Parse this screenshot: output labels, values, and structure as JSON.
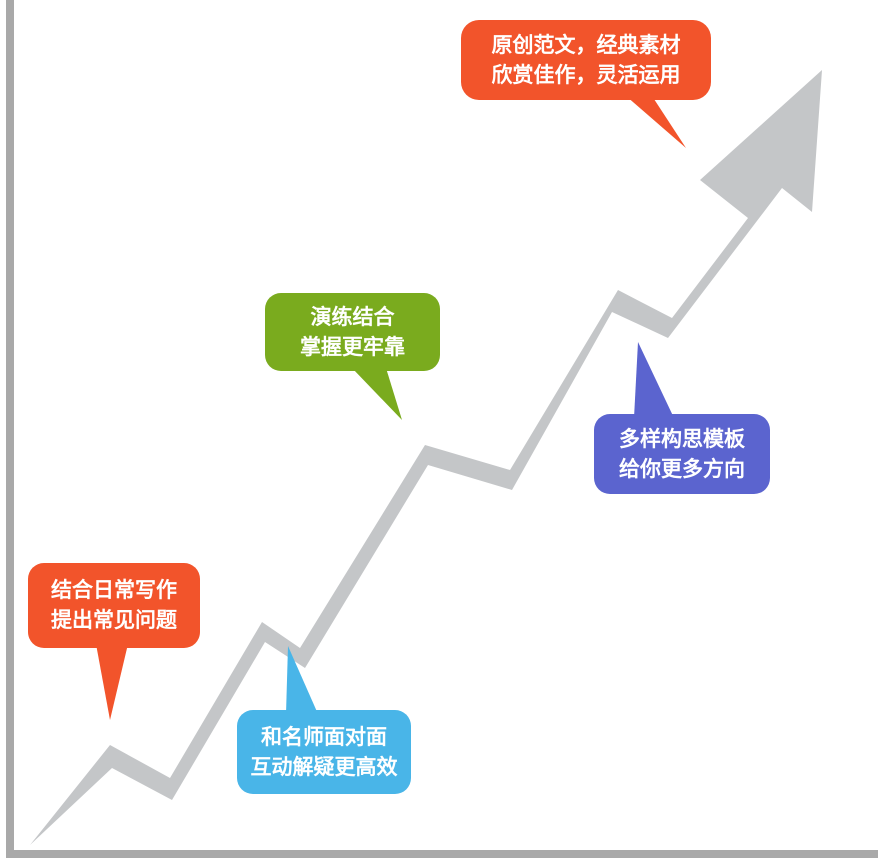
{
  "colors": {
    "arrow": "#c4c6c8",
    "axis": "#a9a9a9",
    "orange": "#f2542b",
    "green": "#7aab1e",
    "blue": "#5b64cf",
    "cyan": "#49b5e8"
  },
  "callouts": [
    {
      "id": "top",
      "lines": [
        "原创范文，经典素材",
        "欣赏佳作，灵活运用"
      ]
    },
    {
      "id": "green",
      "lines": [
        "演练结合",
        "掌握更牢靠"
      ]
    },
    {
      "id": "blue",
      "lines": [
        "多样构思模板",
        "给你更多方向"
      ]
    },
    {
      "id": "left",
      "lines": [
        "结合日常写作",
        "提出常见问题"
      ]
    },
    {
      "id": "cyan",
      "lines": [
        "和名师面对面",
        "互动解疑更高效"
      ]
    }
  ]
}
